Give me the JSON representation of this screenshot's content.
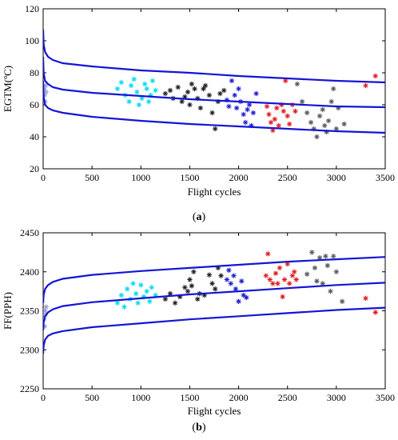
{
  "chart_data": [
    {
      "panel": "a",
      "type": "scatter",
      "xlabel": "Flight cycles",
      "ylabel": "EGTM(ºC)",
      "xlim": [
        0,
        3500
      ],
      "ylim": [
        20,
        120
      ],
      "xticks": [
        0,
        500,
        1000,
        1500,
        2000,
        2500,
        3000,
        3500
      ],
      "yticks": [
        20,
        40,
        60,
        80,
        100,
        120
      ],
      "grid": false,
      "curves_color": "#1515d6",
      "curves": [
        {
          "points": [
            [
              0,
              107
            ],
            [
              5,
              98
            ],
            [
              20,
              93
            ],
            [
              50,
              90
            ],
            [
              100,
              88
            ],
            [
              200,
              86
            ],
            [
              500,
              84
            ],
            [
              1000,
              81.5
            ],
            [
              1500,
              80
            ],
            [
              2000,
              78
            ],
            [
              2500,
              76.5
            ],
            [
              3000,
              75
            ],
            [
              3500,
              74
            ]
          ]
        },
        {
          "points": [
            [
              0,
              90
            ],
            [
              5,
              80
            ],
            [
              20,
              75
            ],
            [
              50,
              73
            ],
            [
              100,
              71
            ],
            [
              200,
              69.5
            ],
            [
              500,
              67.5
            ],
            [
              1000,
              65.5
            ],
            [
              1500,
              63.5
            ],
            [
              2000,
              62
            ],
            [
              2500,
              60.5
            ],
            [
              3000,
              59
            ],
            [
              3500,
              58.5
            ]
          ]
        },
        {
          "points": [
            [
              0,
              75
            ],
            [
              5,
              65
            ],
            [
              20,
              60
            ],
            [
              50,
              58
            ],
            [
              100,
              56.5
            ],
            [
              200,
              55
            ],
            [
              500,
              52.5
            ],
            [
              1000,
              50
            ],
            [
              1500,
              48
            ],
            [
              2000,
              46.5
            ],
            [
              2500,
              45
            ],
            [
              3000,
              43.5
            ],
            [
              3500,
              42.5
            ]
          ]
        }
      ],
      "series": [
        {
          "color": "#9a9ad8",
          "points": [
            [
              10,
              70
            ],
            [
              15,
              66
            ],
            [
              20,
              62
            ],
            [
              25,
              72
            ],
            [
              30,
              68
            ]
          ]
        },
        {
          "color": "#00d8f0",
          "points": [
            [
              760,
              70
            ],
            [
              800,
              74
            ],
            [
              840,
              66
            ],
            [
              880,
              62
            ],
            [
              900,
              72
            ],
            [
              930,
              76
            ],
            [
              960,
              68
            ],
            [
              980,
              60
            ],
            [
              1010,
              64
            ],
            [
              1040,
              73
            ],
            [
              1060,
              70
            ],
            [
              1080,
              62
            ],
            [
              1100,
              66
            ],
            [
              1120,
              75
            ],
            [
              1150,
              69
            ]
          ]
        },
        {
          "color": "#1a1a1a",
          "points": [
            [
              1250,
              67
            ],
            [
              1300,
              69
            ],
            [
              1330,
              64
            ],
            [
              1380,
              71
            ],
            [
              1420,
              62
            ],
            [
              1450,
              65
            ],
            [
              1480,
              68
            ],
            [
              1500,
              60
            ],
            [
              1520,
              73
            ],
            [
              1550,
              70
            ],
            [
              1580,
              64
            ],
            [
              1610,
              58
            ],
            [
              1640,
              70
            ],
            [
              1660,
              72
            ],
            [
              1700,
              66
            ],
            [
              1730,
              55
            ],
            [
              1760,
              45
            ],
            [
              1790,
              62
            ],
            [
              1810,
              67
            ],
            [
              1850,
              69
            ]
          ]
        },
        {
          "color": "#1a1ad0",
          "points": [
            [
              1880,
              63
            ],
            [
              1900,
              59
            ],
            [
              1930,
              75
            ],
            [
              1960,
              66
            ],
            [
              1980,
              58
            ],
            [
              2000,
              70
            ],
            [
              2020,
              62
            ],
            [
              2050,
              54
            ],
            [
              2070,
              49
            ],
            [
              2090,
              57
            ],
            [
              2110,
              60
            ],
            [
              2130,
              47
            ],
            [
              2150,
              55
            ],
            [
              2180,
              67
            ]
          ]
        },
        {
          "color": "#e01818",
          "points": [
            [
              2290,
              59
            ],
            [
              2310,
              54
            ],
            [
              2330,
              49
            ],
            [
              2350,
              44
            ],
            [
              2370,
              51
            ],
            [
              2390,
              58
            ],
            [
              2410,
              47
            ],
            [
              2440,
              60
            ],
            [
              2460,
              56
            ],
            [
              2480,
              75
            ],
            [
              2500,
              53
            ],
            [
              2520,
              48
            ],
            [
              2550,
              60
            ],
            [
              2580,
              56
            ],
            [
              3300,
              72
            ],
            [
              3400,
              78
            ]
          ]
        },
        {
          "color": "#555555",
          "points": [
            [
              2600,
              73
            ],
            [
              2650,
              62
            ],
            [
              2700,
              55
            ],
            [
              2740,
              49
            ],
            [
              2770,
              45
            ],
            [
              2800,
              40
            ],
            [
              2830,
              53
            ],
            [
              2860,
              57
            ],
            [
              2880,
              47
            ],
            [
              2900,
              43
            ],
            [
              2920,
              50
            ],
            [
              2950,
              62
            ],
            [
              2970,
              70
            ],
            [
              3000,
              45
            ],
            [
              3020,
              58
            ],
            [
              3080,
              48
            ]
          ]
        }
      ]
    },
    {
      "panel": "b",
      "type": "scatter",
      "xlabel": "Flight cycles",
      "ylabel": "FF(PPH)",
      "xlim": [
        0,
        3500
      ],
      "ylim": [
        2250,
        2450
      ],
      "xticks": [
        0,
        500,
        1000,
        1500,
        2000,
        2500,
        3000,
        3500
      ],
      "yticks": [
        2250,
        2300,
        2350,
        2400,
        2450
      ],
      "grid": false,
      "curves_color": "#1515d6",
      "curves": [
        {
          "points": [
            [
              0,
              2360
            ],
            [
              5,
              2370
            ],
            [
              20,
              2378
            ],
            [
              50,
              2383
            ],
            [
              100,
              2387
            ],
            [
              200,
              2391
            ],
            [
              500,
              2396
            ],
            [
              1000,
              2401
            ],
            [
              1500,
              2405
            ],
            [
              2000,
              2409
            ],
            [
              2500,
              2413
            ],
            [
              3000,
              2416
            ],
            [
              3500,
              2419
            ]
          ]
        },
        {
          "points": [
            [
              0,
              2325
            ],
            [
              5,
              2335
            ],
            [
              20,
              2343
            ],
            [
              50,
              2348
            ],
            [
              100,
              2352
            ],
            [
              200,
              2356
            ],
            [
              500,
              2361
            ],
            [
              1000,
              2366
            ],
            [
              1500,
              2371
            ],
            [
              2000,
              2375
            ],
            [
              2500,
              2379
            ],
            [
              3000,
              2383
            ],
            [
              3500,
              2386
            ]
          ]
        },
        {
          "points": [
            [
              0,
              2295
            ],
            [
              5,
              2305
            ],
            [
              20,
              2313
            ],
            [
              50,
              2318
            ],
            [
              100,
              2321
            ],
            [
              200,
              2324
            ],
            [
              500,
              2329
            ],
            [
              1000,
              2334
            ],
            [
              1500,
              2339
            ],
            [
              2000,
              2343
            ],
            [
              2500,
              2347
            ],
            [
              3000,
              2351
            ],
            [
              3500,
              2354
            ]
          ]
        }
      ],
      "series": [
        {
          "color": "#9a9ad8",
          "points": [
            [
              10,
              2340
            ],
            [
              15,
              2330
            ],
            [
              20,
              2350
            ],
            [
              25,
              2345
            ],
            [
              30,
              2355
            ]
          ]
        },
        {
          "color": "#00d8f0",
          "points": [
            [
              760,
              2360
            ],
            [
              800,
              2370
            ],
            [
              830,
              2355
            ],
            [
              860,
              2378
            ],
            [
              890,
              2365
            ],
            [
              920,
              2385
            ],
            [
              950,
              2372
            ],
            [
              970,
              2360
            ],
            [
              1000,
              2383
            ],
            [
              1030,
              2368
            ],
            [
              1060,
              2375
            ],
            [
              1090,
              2362
            ],
            [
              1110,
              2380
            ],
            [
              1150,
              2370
            ]
          ]
        },
        {
          "color": "#1a1a1a",
          "points": [
            [
              1250,
              2365
            ],
            [
              1300,
              2372
            ],
            [
              1350,
              2360
            ],
            [
              1400,
              2368
            ],
            [
              1450,
              2380
            ],
            [
              1480,
              2375
            ],
            [
              1500,
              2390
            ],
            [
              1520,
              2382
            ],
            [
              1540,
              2400
            ],
            [
              1580,
              2365
            ],
            [
              1600,
              2372
            ],
            [
              1650,
              2370
            ],
            [
              1700,
              2396
            ],
            [
              1730,
              2385
            ],
            [
              1760,
              2378
            ],
            [
              1790,
              2405
            ],
            [
              1820,
              2395
            ]
          ]
        },
        {
          "color": "#1a1ad0",
          "points": [
            [
              1880,
              2390
            ],
            [
              1900,
              2402
            ],
            [
              1920,
              2385
            ],
            [
              1950,
              2395
            ],
            [
              1970,
              2378
            ],
            [
              2000,
              2362
            ],
            [
              2030,
              2388
            ],
            [
              2050,
              2370
            ],
            [
              2080,
              2367
            ]
          ]
        },
        {
          "color": "#e01818",
          "points": [
            [
              2280,
              2395
            ],
            [
              2300,
              2423
            ],
            [
              2320,
              2390
            ],
            [
              2350,
              2385
            ],
            [
              2380,
              2398
            ],
            [
              2400,
              2385
            ],
            [
              2420,
              2405
            ],
            [
              2450,
              2368
            ],
            [
              2470,
              2390
            ],
            [
              2500,
              2410
            ],
            [
              2520,
              2385
            ],
            [
              2550,
              2395
            ],
            [
              2570,
              2400
            ],
            [
              2590,
              2390
            ],
            [
              3300,
              2366
            ],
            [
              3400,
              2348
            ]
          ]
        },
        {
          "color": "#555555",
          "points": [
            [
              2700,
              2397
            ],
            [
              2750,
              2425
            ],
            [
              2780,
              2405
            ],
            [
              2800,
              2388
            ],
            [
              2830,
              2418
            ],
            [
              2860,
              2385
            ],
            [
              2890,
              2420
            ],
            [
              2910,
              2408
            ],
            [
              2940,
              2375
            ],
            [
              2970,
              2420
            ],
            [
              3000,
              2400
            ],
            [
              3060,
              2362
            ]
          ]
        }
      ]
    }
  ],
  "captions": [
    "a",
    "b"
  ]
}
